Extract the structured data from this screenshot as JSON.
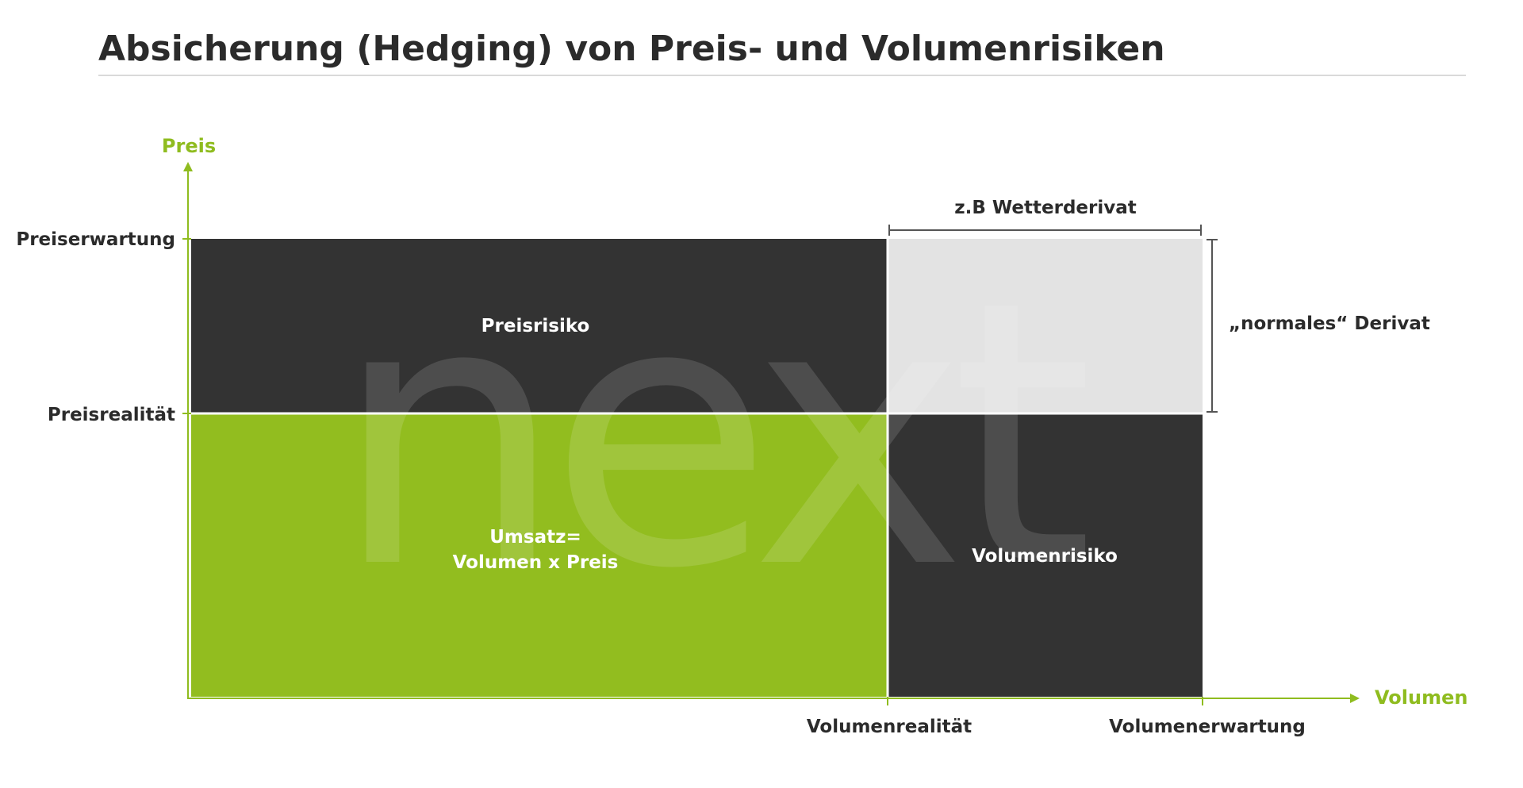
{
  "title": "Absicherung (Hedging) von Preis- und Volumenrisiken",
  "axes": {
    "y_label": "Preis",
    "x_label": "Volumen",
    "y_ticks": [
      "Preiserwartung",
      "Preisrealität"
    ],
    "x_ticks": [
      "Volumenrealität",
      "Volumenerwartung"
    ]
  },
  "regions": {
    "price_risk": "Preisrisiko",
    "revenue_line1": "Umsatz=",
    "revenue_line2": "Volumen x Preis",
    "volume_risk": "Volumenrisiko"
  },
  "brackets": {
    "top": "z.B Wetterderivat",
    "right": "„normales“ Derivat"
  },
  "watermark": "next",
  "colors": {
    "accent_green": "#8fbc1f",
    "dark": "#333333",
    "light_gray": "#e3e3e3",
    "text_dark": "#2b2b2b"
  }
}
